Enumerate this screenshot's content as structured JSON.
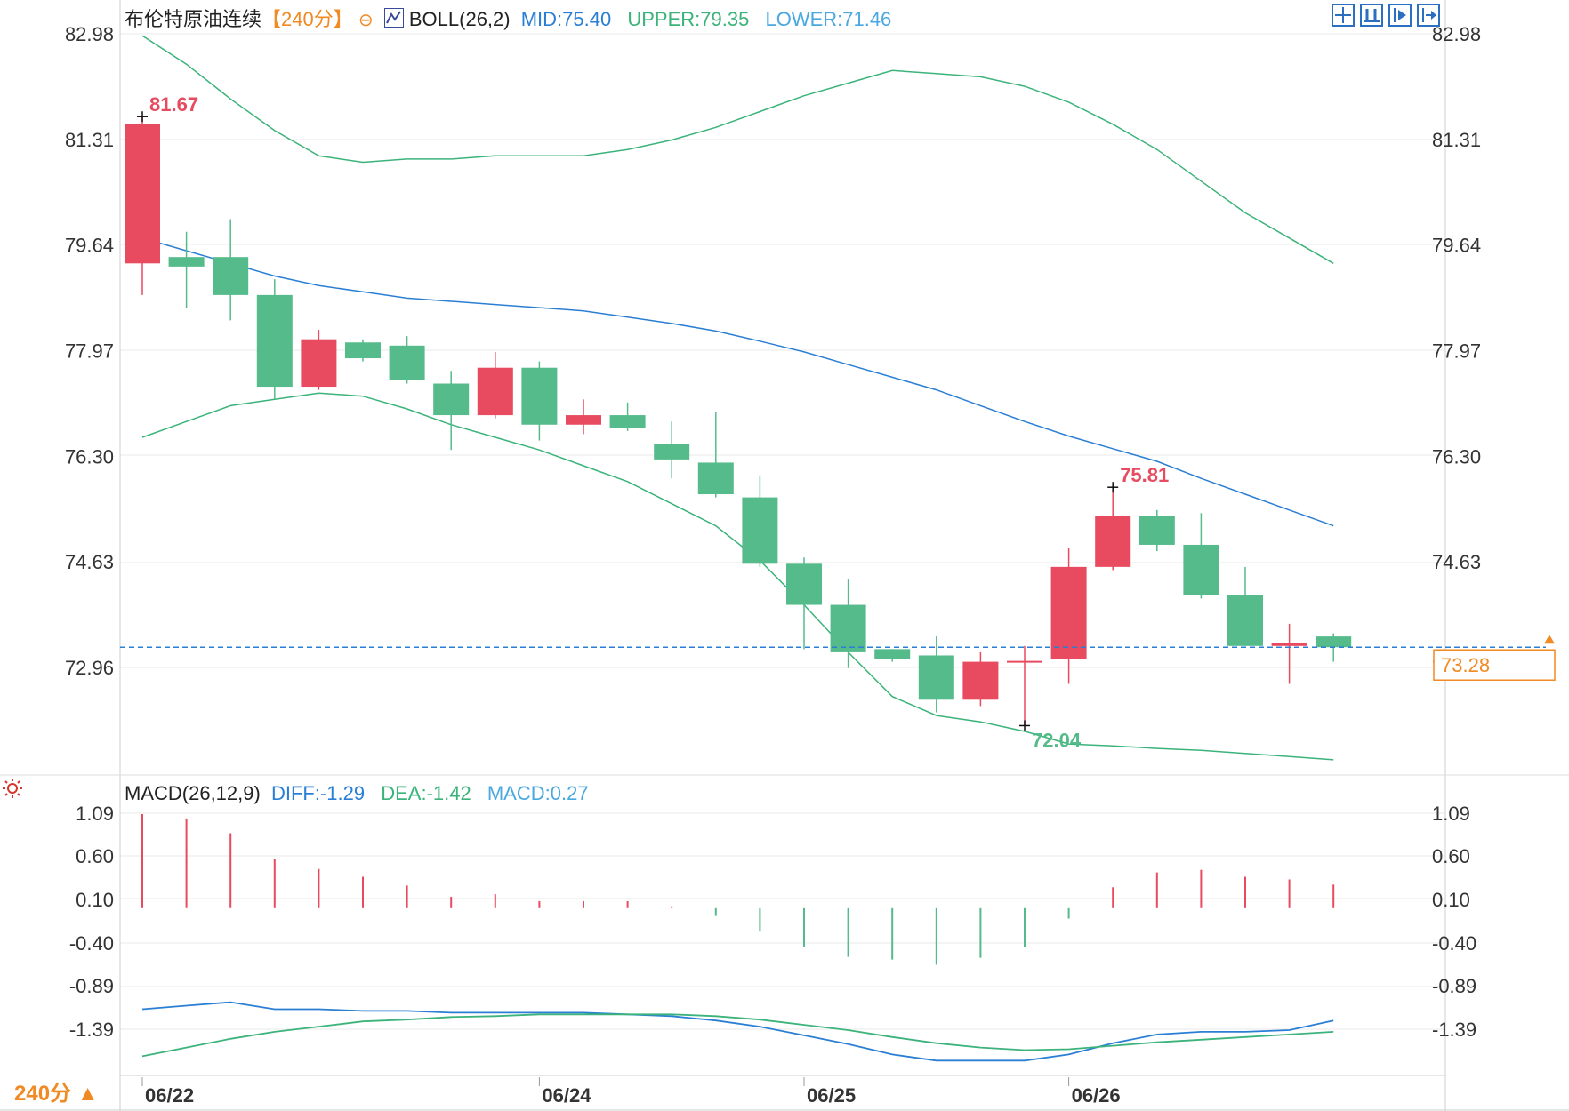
{
  "header": {
    "instrument": "布伦特原油连续",
    "period_tag": "【240分】",
    "boll_label": "BOLL(26,2)",
    "boll_mid": "MID:75.40",
    "boll_upper": "UPPER:79.35",
    "boll_lower": "LOWER:71.46"
  },
  "macd_header": {
    "label": "MACD(26,12,9)",
    "diff": "DIFF:-1.29",
    "dea": "DEA:-1.42",
    "macd": "MACD:0.27"
  },
  "period_button": "240分 ▲",
  "colors": {
    "up": "#e84a5f",
    "down": "#55bb8a",
    "mid": "#2a7fd4",
    "band": "#3bb37a",
    "dea": "#3bb37a",
    "diff": "#2a7fd4",
    "current_price": "#f08a24",
    "axis_text": "#333333"
  },
  "chart_data": [
    {
      "type": "candlestick",
      "title": "布伦特原油连续",
      "y_ticks": [
        "82.98",
        "81.31",
        "79.64",
        "77.97",
        "76.30",
        "74.63",
        "72.96"
      ],
      "ylim": [
        71.3,
        83.2
      ],
      "x_labels": [
        "06/22",
        "06/24",
        "06/25",
        "06/26"
      ],
      "x_label_indices": [
        0,
        9,
        15,
        21
      ],
      "current_price": "73.28",
      "annotations": [
        {
          "text": "81.67",
          "index": 0,
          "kind": "high"
        },
        {
          "text": "75.81",
          "index": 22,
          "kind": "high"
        },
        {
          "text": "72.04",
          "index": 20,
          "kind": "low"
        }
      ],
      "candles": [
        {
          "o": 79.35,
          "c": 81.55,
          "h": 81.67,
          "l": 78.85
        },
        {
          "o": 79.45,
          "c": 79.3,
          "h": 79.85,
          "l": 78.65
        },
        {
          "o": 79.45,
          "c": 78.85,
          "h": 80.05,
          "l": 78.45
        },
        {
          "o": 78.85,
          "c": 77.4,
          "h": 79.1,
          "l": 77.2
        },
        {
          "o": 77.4,
          "c": 78.15,
          "h": 78.3,
          "l": 77.35
        },
        {
          "o": 78.1,
          "c": 77.85,
          "h": 78.15,
          "l": 77.8
        },
        {
          "o": 78.05,
          "c": 77.5,
          "h": 78.2,
          "l": 77.45
        },
        {
          "o": 77.45,
          "c": 76.95,
          "h": 77.65,
          "l": 76.4
        },
        {
          "o": 76.95,
          "c": 77.7,
          "h": 77.95,
          "l": 76.9
        },
        {
          "o": 77.7,
          "c": 76.8,
          "h": 77.8,
          "l": 76.55
        },
        {
          "o": 76.8,
          "c": 76.95,
          "h": 77.2,
          "l": 76.65
        },
        {
          "o": 76.95,
          "c": 76.75,
          "h": 77.15,
          "l": 76.7
        },
        {
          "o": 76.5,
          "c": 76.25,
          "h": 76.85,
          "l": 75.95
        },
        {
          "o": 76.2,
          "c": 75.7,
          "h": 77.0,
          "l": 75.65
        },
        {
          "o": 75.65,
          "c": 74.6,
          "h": 76.0,
          "l": 74.55
        },
        {
          "o": 74.6,
          "c": 73.95,
          "h": 74.7,
          "l": 73.25
        },
        {
          "o": 73.95,
          "c": 73.2,
          "h": 74.35,
          "l": 72.95
        },
        {
          "o": 73.25,
          "c": 73.1,
          "h": 73.25,
          "l": 73.05
        },
        {
          "o": 73.15,
          "c": 72.45,
          "h": 73.45,
          "l": 72.25
        },
        {
          "o": 72.45,
          "c": 73.05,
          "h": 73.2,
          "l": 72.35
        },
        {
          "o": 73.05,
          "c": 73.05,
          "h": 73.3,
          "l": 72.04
        },
        {
          "o": 73.1,
          "c": 74.55,
          "h": 74.85,
          "l": 72.7
        },
        {
          "o": 74.55,
          "c": 75.35,
          "h": 75.81,
          "l": 74.5
        },
        {
          "o": 75.35,
          "c": 74.9,
          "h": 75.45,
          "l": 74.8
        },
        {
          "o": 74.9,
          "c": 74.1,
          "h": 75.4,
          "l": 74.05
        },
        {
          "o": 74.1,
          "c": 73.3,
          "h": 74.55,
          "l": 73.3
        },
        {
          "o": 73.3,
          "c": 73.35,
          "h": 73.65,
          "l": 72.7
        },
        {
          "o": 73.45,
          "c": 73.28,
          "h": 73.5,
          "l": 73.05
        }
      ],
      "boll_mid": [
        79.75,
        79.55,
        79.35,
        79.15,
        79.0,
        78.9,
        78.8,
        78.75,
        78.7,
        78.65,
        78.6,
        78.5,
        78.4,
        78.28,
        78.12,
        77.95,
        77.75,
        77.55,
        77.35,
        77.1,
        76.85,
        76.62,
        76.42,
        76.22,
        75.95,
        75.7,
        75.45,
        75.2
      ],
      "boll_upper": [
        82.95,
        82.5,
        81.95,
        81.45,
        81.05,
        80.95,
        81.0,
        81.0,
        81.05,
        81.05,
        81.05,
        81.15,
        81.3,
        81.5,
        81.75,
        82.0,
        82.2,
        82.4,
        82.35,
        82.3,
        82.15,
        81.9,
        81.55,
        81.15,
        80.65,
        80.15,
        79.75,
        79.35
      ],
      "boll_lower": [
        76.6,
        76.85,
        77.1,
        77.2,
        77.3,
        77.25,
        77.05,
        76.8,
        76.6,
        76.4,
        76.15,
        75.9,
        75.55,
        75.2,
        74.65,
        73.95,
        73.2,
        72.5,
        72.2,
        72.1,
        71.95,
        71.75,
        71.72,
        71.68,
        71.65,
        71.6,
        71.55,
        71.5
      ]
    },
    {
      "type": "macd",
      "title": "MACD(26,12,9)",
      "y_ticks": [
        "1.09",
        "0.60",
        "0.10",
        "-0.40",
        "-0.89",
        "-1.39"
      ],
      "ylim": [
        -1.75,
        1.15
      ],
      "histogram": [
        1.08,
        1.03,
        0.86,
        0.56,
        0.45,
        0.36,
        0.26,
        0.13,
        0.16,
        0.08,
        0.08,
        0.08,
        0.02,
        -0.09,
        -0.27,
        -0.44,
        -0.56,
        -0.59,
        -0.65,
        -0.57,
        -0.45,
        -0.12,
        0.24,
        0.41,
        0.44,
        0.36,
        0.33,
        0.27
      ],
      "diff": [
        -1.16,
        -1.12,
        -1.08,
        -1.16,
        -1.16,
        -1.18,
        -1.18,
        -1.2,
        -1.2,
        -1.2,
        -1.2,
        -1.22,
        -1.24,
        -1.29,
        -1.36,
        -1.46,
        -1.56,
        -1.68,
        -1.75,
        -1.75,
        -1.75,
        -1.68,
        -1.55,
        -1.45,
        -1.42,
        -1.42,
        -1.4,
        -1.29
      ],
      "dea": [
        -1.7,
        -1.6,
        -1.5,
        -1.42,
        -1.36,
        -1.3,
        -1.28,
        -1.25,
        -1.24,
        -1.22,
        -1.22,
        -1.22,
        -1.22,
        -1.24,
        -1.28,
        -1.34,
        -1.4,
        -1.48,
        -1.55,
        -1.6,
        -1.63,
        -1.62,
        -1.58,
        -1.54,
        -1.51,
        -1.48,
        -1.45,
        -1.42
      ]
    }
  ]
}
